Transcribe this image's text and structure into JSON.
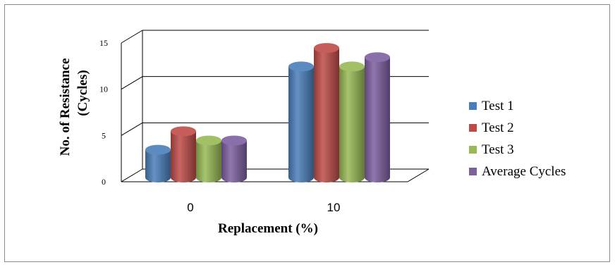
{
  "chart_data": {
    "type": "bar",
    "categories": [
      "0",
      "10"
    ],
    "series": [
      {
        "name": "Test 1",
        "values": [
          3,
          12
        ],
        "color": "#4a7ebb"
      },
      {
        "name": "Test 2",
        "values": [
          5,
          14
        ],
        "color": "#be4b48"
      },
      {
        "name": "Test 3",
        "values": [
          4,
          12
        ],
        "color": "#98b954"
      },
      {
        "name": "Average Cycles",
        "values": [
          4,
          13
        ],
        "color": "#7d5fa0"
      }
    ],
    "xlabel": "Replacement  (%)",
    "ylabel_lines": [
      "No.  of Resistance",
      "(Cycles)"
    ],
    "ylim": [
      0,
      15
    ],
    "yticks": [
      "0",
      "5",
      "10",
      "15"
    ],
    "grid": true,
    "legend_position": "right",
    "style": "3d-cylinder"
  }
}
